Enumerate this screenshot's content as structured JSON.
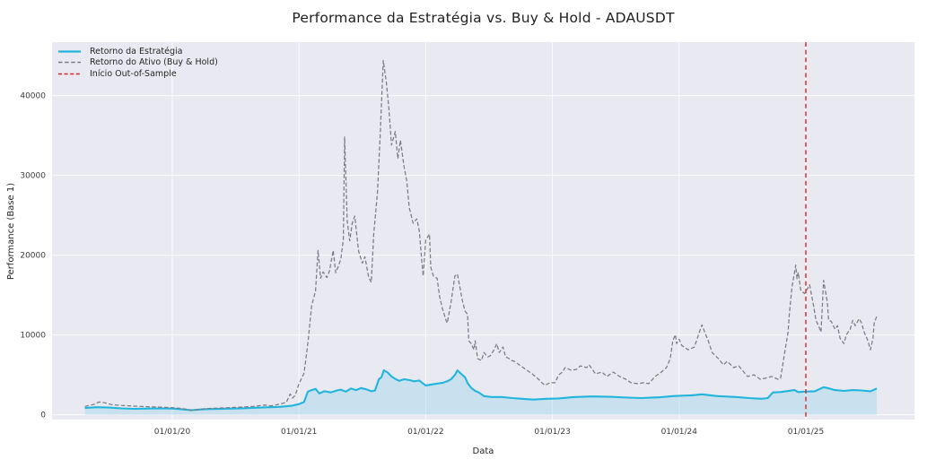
{
  "header": {
    "title": "Performance da Estratégia vs. Buy & Hold - ADAUSDT"
  },
  "legend": {
    "position": "upper left",
    "items": [
      {
        "label": "Retorno da Estratégia",
        "color": "#22b5dc",
        "dash": "",
        "line_width": 2.2
      },
      {
        "label": "Retorno do Ativo (Buy & Hold)",
        "color": "#7b7b83",
        "dash": "4.5 2.6",
        "line_width": 1.4
      },
      {
        "label": "Início Out-of-Sample",
        "color": "#dc2626",
        "dash": "4 2.6",
        "line_width": 1.4
      }
    ]
  },
  "chart_data": {
    "type": "line",
    "title": "Performance da Estratégia vs. Buy & Hold - ADAUSDT",
    "xlabel": "Data",
    "ylabel": "Performance (Base 1)",
    "grid": true,
    "legend_position": "upper left",
    "plot_bg": "#e9e9f1",
    "grid_color": "#ffffff",
    "x_unit": "decimal_year",
    "x_range": [
      2019.051,
      2025.857
    ],
    "y_range": [
      -600,
      46700
    ],
    "x_ticks": {
      "values": [
        2020,
        2021,
        2022,
        2023,
        2024,
        2025
      ],
      "labels": [
        "01/01/20",
        "01/01/21",
        "01/01/22",
        "01/01/23",
        "01/01/24",
        "01/01/25"
      ]
    },
    "y_ticks": {
      "values": [
        0,
        10000,
        20000,
        30000,
        40000
      ],
      "labels": [
        "0",
        "10000",
        "20000",
        "30000",
        "40000"
      ]
    },
    "oos_line": {
      "label": "Início Out-of-Sample",
      "x": 2025.0,
      "color": "#dc2626",
      "dash": "5 3.6",
      "width": 1.4
    },
    "series": [
      {
        "name": "Retorno da Estratégia",
        "color": "#22b5dc",
        "style": "solid",
        "width": 2.1,
        "fill_to_zero": true,
        "fill_color": "#87ceeb",
        "fill_opacity": 0.32,
        "points": [
          [
            2019.31,
            850
          ],
          [
            2019.4,
            950
          ],
          [
            2019.5,
            900
          ],
          [
            2019.6,
            800
          ],
          [
            2019.7,
            750
          ],
          [
            2019.8,
            780
          ],
          [
            2019.9,
            800
          ],
          [
            2020.0,
            780
          ],
          [
            2020.08,
            680
          ],
          [
            2020.15,
            580
          ],
          [
            2020.25,
            700
          ],
          [
            2020.4,
            760
          ],
          [
            2020.55,
            820
          ],
          [
            2020.7,
            900
          ],
          [
            2020.85,
            1000
          ],
          [
            2020.95,
            1150
          ],
          [
            2021.0,
            1340
          ],
          [
            2021.04,
            1600
          ],
          [
            2021.07,
            2900
          ],
          [
            2021.1,
            3100
          ],
          [
            2021.13,
            3250
          ],
          [
            2021.16,
            2680
          ],
          [
            2021.2,
            2950
          ],
          [
            2021.25,
            2800
          ],
          [
            2021.3,
            3050
          ],
          [
            2021.33,
            3150
          ],
          [
            2021.37,
            2900
          ],
          [
            2021.41,
            3300
          ],
          [
            2021.45,
            3100
          ],
          [
            2021.49,
            3350
          ],
          [
            2021.53,
            3200
          ],
          [
            2021.57,
            2950
          ],
          [
            2021.6,
            3050
          ],
          [
            2021.63,
            4460
          ],
          [
            2021.65,
            4700
          ],
          [
            2021.67,
            5580
          ],
          [
            2021.7,
            5300
          ],
          [
            2021.73,
            4800
          ],
          [
            2021.76,
            4500
          ],
          [
            2021.79,
            4250
          ],
          [
            2021.83,
            4460
          ],
          [
            2021.87,
            4350
          ],
          [
            2021.91,
            4200
          ],
          [
            2021.95,
            4300
          ],
          [
            2021.98,
            3900
          ],
          [
            2022.0,
            3680
          ],
          [
            2022.05,
            3800
          ],
          [
            2022.09,
            3900
          ],
          [
            2022.13,
            4000
          ],
          [
            2022.17,
            4200
          ],
          [
            2022.2,
            4460
          ],
          [
            2022.23,
            5000
          ],
          [
            2022.25,
            5570
          ],
          [
            2022.28,
            5130
          ],
          [
            2022.31,
            4700
          ],
          [
            2022.33,
            4000
          ],
          [
            2022.36,
            3350
          ],
          [
            2022.39,
            3000
          ],
          [
            2022.42,
            2790
          ],
          [
            2022.46,
            2340
          ],
          [
            2022.52,
            2230
          ],
          [
            2022.6,
            2230
          ],
          [
            2022.68,
            2100
          ],
          [
            2022.76,
            2010
          ],
          [
            2022.85,
            1900
          ],
          [
            2022.95,
            2010
          ],
          [
            2023.05,
            2050
          ],
          [
            2023.15,
            2200
          ],
          [
            2023.3,
            2300
          ],
          [
            2023.45,
            2250
          ],
          [
            2023.6,
            2150
          ],
          [
            2023.7,
            2100
          ],
          [
            2023.85,
            2200
          ],
          [
            2023.95,
            2340
          ],
          [
            2024.1,
            2450
          ],
          [
            2024.18,
            2570
          ],
          [
            2024.3,
            2340
          ],
          [
            2024.45,
            2230
          ],
          [
            2024.55,
            2100
          ],
          [
            2024.65,
            2010
          ],
          [
            2024.7,
            2100
          ],
          [
            2024.74,
            2800
          ],
          [
            2024.8,
            2850
          ],
          [
            2024.91,
            3100
          ],
          [
            2024.94,
            2850
          ],
          [
            2024.99,
            2900
          ],
          [
            2025.07,
            2950
          ],
          [
            2025.14,
            3460
          ],
          [
            2025.17,
            3350
          ],
          [
            2025.23,
            3100
          ],
          [
            2025.3,
            3000
          ],
          [
            2025.37,
            3100
          ],
          [
            2025.44,
            3050
          ],
          [
            2025.51,
            2950
          ],
          [
            2025.56,
            3300
          ]
        ]
      },
      {
        "name": "Retorno do Ativo (Buy & Hold)",
        "color": "#7b7b83",
        "style": "dashed",
        "dash": "4.5 2.4",
        "width": 1.25,
        "fill_to_zero": false,
        "points": [
          [
            2019.31,
            1050
          ],
          [
            2019.38,
            1300
          ],
          [
            2019.42,
            1600
          ],
          [
            2019.47,
            1500
          ],
          [
            2019.52,
            1280
          ],
          [
            2019.6,
            1180
          ],
          [
            2019.7,
            1080
          ],
          [
            2019.8,
            1020
          ],
          [
            2019.9,
            960
          ],
          [
            2020.0,
            890
          ],
          [
            2020.08,
            780
          ],
          [
            2020.15,
            560
          ],
          [
            2020.22,
            700
          ],
          [
            2020.3,
            800
          ],
          [
            2020.42,
            870
          ],
          [
            2020.54,
            960
          ],
          [
            2020.65,
            1060
          ],
          [
            2020.73,
            1230
          ],
          [
            2020.78,
            1120
          ],
          [
            2020.85,
            1340
          ],
          [
            2020.9,
            1560
          ],
          [
            2020.93,
            2600
          ],
          [
            2020.95,
            2100
          ],
          [
            2020.97,
            2450
          ],
          [
            2021.0,
            3900
          ],
          [
            2021.04,
            5200
          ],
          [
            2021.07,
            9000
          ],
          [
            2021.1,
            13700
          ],
          [
            2021.13,
            15500
          ],
          [
            2021.15,
            20600
          ],
          [
            2021.17,
            17100
          ],
          [
            2021.19,
            17900
          ],
          [
            2021.22,
            17200
          ],
          [
            2021.24,
            18000
          ],
          [
            2021.27,
            20600
          ],
          [
            2021.29,
            17800
          ],
          [
            2021.31,
            18600
          ],
          [
            2021.33,
            19500
          ],
          [
            2021.35,
            22000
          ],
          [
            2021.36,
            34800
          ],
          [
            2021.38,
            24300
          ],
          [
            2021.4,
            21800
          ],
          [
            2021.42,
            24000
          ],
          [
            2021.44,
            24900
          ],
          [
            2021.47,
            20500
          ],
          [
            2021.5,
            19000
          ],
          [
            2021.52,
            19800
          ],
          [
            2021.55,
            17200
          ],
          [
            2021.57,
            16600
          ],
          [
            2021.59,
            22650
          ],
          [
            2021.62,
            28000
          ],
          [
            2021.64,
            34900
          ],
          [
            2021.665,
            44400
          ],
          [
            2021.69,
            41600
          ],
          [
            2021.71,
            38300
          ],
          [
            2021.73,
            33800
          ],
          [
            2021.76,
            35500
          ],
          [
            2021.78,
            32100
          ],
          [
            2021.8,
            34400
          ],
          [
            2021.83,
            31000
          ],
          [
            2021.85,
            29400
          ],
          [
            2021.87,
            26000
          ],
          [
            2021.9,
            24000
          ],
          [
            2021.93,
            24550
          ],
          [
            2021.95,
            23000
          ],
          [
            2021.97,
            19000
          ],
          [
            2021.98,
            17400
          ],
          [
            2022.0,
            21900
          ],
          [
            2022.03,
            22650
          ],
          [
            2022.04,
            18500
          ],
          [
            2022.06,
            17400
          ],
          [
            2022.09,
            17100
          ],
          [
            2022.11,
            14800
          ],
          [
            2022.13,
            13400
          ],
          [
            2022.16,
            11850
          ],
          [
            2022.17,
            11500
          ],
          [
            2022.2,
            14100
          ],
          [
            2022.23,
            17400
          ],
          [
            2022.25,
            17650
          ],
          [
            2022.29,
            14300
          ],
          [
            2022.31,
            13000
          ],
          [
            2022.33,
            12600
          ],
          [
            2022.34,
            9260
          ],
          [
            2022.36,
            8900
          ],
          [
            2022.38,
            8150
          ],
          [
            2022.39,
            9260
          ],
          [
            2022.41,
            7030
          ],
          [
            2022.44,
            6800
          ],
          [
            2022.46,
            7800
          ],
          [
            2022.49,
            7250
          ],
          [
            2022.51,
            7400
          ],
          [
            2022.54,
            8150
          ],
          [
            2022.56,
            8900
          ],
          [
            2022.58,
            7800
          ],
          [
            2022.61,
            8500
          ],
          [
            2022.63,
            7250
          ],
          [
            2022.66,
            7030
          ],
          [
            2022.68,
            6800
          ],
          [
            2022.7,
            6700
          ],
          [
            2022.75,
            6130
          ],
          [
            2022.8,
            5570
          ],
          [
            2022.84,
            5130
          ],
          [
            2022.89,
            4460
          ],
          [
            2022.94,
            3680
          ],
          [
            2022.98,
            4020
          ],
          [
            2023.02,
            4020
          ],
          [
            2023.05,
            5020
          ],
          [
            2023.08,
            5360
          ],
          [
            2023.1,
            5920
          ],
          [
            2023.15,
            5570
          ],
          [
            2023.19,
            5690
          ],
          [
            2023.22,
            6130
          ],
          [
            2023.27,
            5920
          ],
          [
            2023.29,
            6250
          ],
          [
            2023.34,
            5130
          ],
          [
            2023.39,
            5360
          ],
          [
            2023.43,
            4800
          ],
          [
            2023.48,
            5360
          ],
          [
            2023.53,
            4800
          ],
          [
            2023.58,
            4460
          ],
          [
            2023.62,
            4020
          ],
          [
            2023.67,
            3900
          ],
          [
            2023.72,
            4020
          ],
          [
            2023.76,
            3900
          ],
          [
            2023.81,
            4800
          ],
          [
            2023.86,
            5360
          ],
          [
            2023.9,
            5920
          ],
          [
            2023.93,
            7030
          ],
          [
            2023.95,
            9260
          ],
          [
            2023.97,
            10040
          ],
          [
            2023.98,
            8930
          ],
          [
            2024.0,
            9480
          ],
          [
            2024.02,
            8700
          ],
          [
            2024.07,
            8150
          ],
          [
            2024.12,
            8480
          ],
          [
            2024.16,
            10380
          ],
          [
            2024.18,
            11270
          ],
          [
            2024.21,
            10040
          ],
          [
            2024.23,
            9260
          ],
          [
            2024.26,
            7800
          ],
          [
            2024.31,
            7030
          ],
          [
            2024.35,
            6250
          ],
          [
            2024.38,
            6700
          ],
          [
            2024.43,
            5920
          ],
          [
            2024.47,
            6130
          ],
          [
            2024.5,
            5570
          ],
          [
            2024.54,
            4800
          ],
          [
            2024.59,
            5020
          ],
          [
            2024.64,
            4460
          ],
          [
            2024.68,
            4580
          ],
          [
            2024.73,
            4800
          ],
          [
            2024.78,
            4460
          ],
          [
            2024.8,
            4580
          ],
          [
            2024.84,
            8480
          ],
          [
            2024.86,
            10380
          ],
          [
            2024.87,
            12610
          ],
          [
            2024.89,
            15960
          ],
          [
            2024.92,
            18750
          ],
          [
            2024.93,
            17070
          ],
          [
            2024.94,
            17850
          ],
          [
            2024.96,
            15620
          ],
          [
            2024.99,
            15180
          ],
          [
            2025.03,
            16290
          ],
          [
            2025.06,
            13730
          ],
          [
            2025.08,
            11830
          ],
          [
            2025.1,
            11160
          ],
          [
            2025.12,
            10380
          ],
          [
            2025.14,
            16850
          ],
          [
            2025.17,
            14060
          ],
          [
            2025.18,
            11830
          ],
          [
            2025.2,
            11720
          ],
          [
            2025.23,
            10720
          ],
          [
            2025.25,
            11160
          ],
          [
            2025.27,
            9600
          ],
          [
            2025.3,
            8930
          ],
          [
            2025.32,
            10040
          ],
          [
            2025.35,
            10720
          ],
          [
            2025.37,
            11830
          ],
          [
            2025.39,
            11160
          ],
          [
            2025.42,
            12050
          ],
          [
            2025.44,
            11500
          ],
          [
            2025.46,
            10380
          ],
          [
            2025.49,
            9260
          ],
          [
            2025.51,
            8150
          ],
          [
            2025.53,
            9600
          ],
          [
            2025.54,
            11500
          ],
          [
            2025.56,
            12390
          ]
        ]
      }
    ]
  }
}
